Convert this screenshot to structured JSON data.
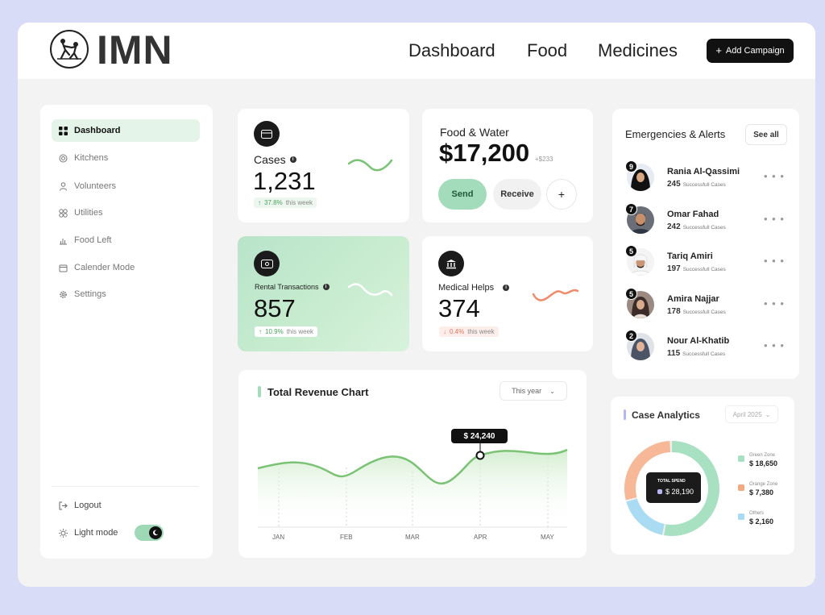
{
  "brand": {
    "name": "IMN"
  },
  "nav": {
    "items": [
      "Dashboard",
      "Food",
      "Medicines"
    ],
    "add_campaign": "Add Campaign"
  },
  "sidebar": {
    "items": [
      {
        "label": "Dashboard",
        "icon": "grid-icon",
        "active": true
      },
      {
        "label": "Kitchens",
        "icon": "kitchen-icon"
      },
      {
        "label": "Volunteers",
        "icon": "user-icon"
      },
      {
        "label": "Utilities",
        "icon": "utilities-icon"
      },
      {
        "label": "Food Left",
        "icon": "chart-icon"
      },
      {
        "label": "Calender Mode",
        "icon": "calendar-icon"
      },
      {
        "label": "Settings",
        "icon": "gear-icon"
      }
    ],
    "logout": "Logout",
    "light_mode": "Light mode",
    "light_mode_on": true
  },
  "stats": {
    "cases": {
      "label": "Cases",
      "value": "1,231",
      "change": "37.8%",
      "change_suffix": "this week",
      "trend": "up"
    },
    "rental": {
      "label": "Rental Transactions",
      "value": "857",
      "change": "10.9%",
      "change_suffix": "this week",
      "trend": "up"
    },
    "medical": {
      "label": "Medical Helps",
      "value": "374",
      "change": "0.4%",
      "change_suffix": "this week",
      "trend": "down"
    }
  },
  "food_water": {
    "title": "Food & Water",
    "amount": "$17,200",
    "delta": "+$233",
    "send": "Send",
    "receive": "Receive"
  },
  "revenue": {
    "title": "Total Revenue Chart",
    "period": "This year",
    "tooltip": "$ 24,240"
  },
  "chart_data": {
    "type": "line",
    "title": "Total Revenue Chart",
    "x": [
      "JAN",
      "FEB",
      "MAR",
      "APR",
      "MAY"
    ],
    "highlight": {
      "x": "APR",
      "value": 24240
    }
  },
  "alerts": {
    "title": "Emergencies & Alerts",
    "see_all": "See all",
    "items": [
      {
        "name": "Rania Al-Qassimi",
        "count": "245",
        "sub": "Successfull Cases",
        "badge": "9"
      },
      {
        "name": "Omar Fahad",
        "count": "242",
        "sub": "Successfull Cases",
        "badge": "7"
      },
      {
        "name": "Tariq Amiri",
        "count": "197",
        "sub": "Successfull Cases",
        "badge": "5"
      },
      {
        "name": "Amira Najjar",
        "count": "178",
        "sub": "Successfull Cases",
        "badge": "5"
      },
      {
        "name": "Nour Al-Khatib",
        "count": "115",
        "sub": "Successfull Cases",
        "badge": "2"
      }
    ]
  },
  "analytics": {
    "title": "Case Analytics",
    "period": "April 2025",
    "total_label": "TOTAL SPEND",
    "total_value": "$ 28,190",
    "legend": [
      {
        "label": "Green Zone",
        "value": "$ 18,650",
        "color": "#a8e0c2"
      },
      {
        "label": "Orange Zone",
        "value": "$ 7,380",
        "color": "#f4a982"
      },
      {
        "label": "Others",
        "value": "$ 2,160",
        "color": "#a9dcf2"
      }
    ]
  },
  "colors": {
    "accent_green": "#7ac274",
    "mint": "#bde6cc",
    "dark": "#111111",
    "orange": "#f08a68"
  }
}
